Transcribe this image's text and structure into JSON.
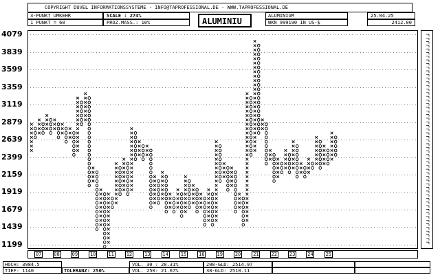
{
  "header": {
    "copyright": "COPYRIGHT DUVEL INFORMATIONSSYSTEME - INFO@TAPROFESSIONAL.DE - WWW.TAPROFESSIONAL.DE",
    "reversal": "3-PUNKT UMKEHR",
    "box_unit": "1 PUNKT = 60",
    "scale": "SCALE : 274%",
    "proz_mass": "PROZ.MASS.: 10%",
    "title": "ALUMINIU",
    "instrument": "ALUMINIUM",
    "wkn": "WKN 999190   IN US-$",
    "date": "25.04.25",
    "last_price": "2412.00"
  },
  "footer": {
    "hoch": "HOCH: 3984.5",
    "tief": "TIEF: 1140",
    "toleranz": "TOLERANZ: 250%",
    "vol30": "VOL. 30 : 20.31%",
    "vol250": "VOL. 250: 21.67%",
    "gld200": "200-GLD: 2514.97",
    "gld38": "38-GLD: 2510.11"
  },
  "colors": {
    "ink": "#000000",
    "background": "#ffffff"
  },
  "chart_data": {
    "type": "point-and-figure",
    "title": "ALUMINIU",
    "box_size": 60,
    "reversal": 3,
    "ylim": [
      1140,
      4140
    ],
    "y_ticks": [
      1199,
      1439,
      1679,
      1919,
      2159,
      2399,
      2639,
      2879,
      3119,
      3359,
      3599,
      3839,
      4079
    ],
    "x_year_labels": [
      "07",
      "08",
      "09",
      "10",
      "11",
      "12",
      "13",
      "14",
      "15",
      "16",
      "19",
      "20",
      "21",
      "22",
      "23",
      "24",
      "25"
    ],
    "columns": [
      {
        "t": "X",
        "lo": 2460,
        "hi": 2820
      },
      {
        "t": "O",
        "lo": 2640,
        "hi": 2760
      },
      {
        "t": "X",
        "lo": 2700,
        "hi": 2880
      },
      {
        "t": "O",
        "lo": 2700,
        "hi": 2820
      },
      {
        "t": "X",
        "lo": 2760,
        "hi": 2940
      },
      {
        "t": "O",
        "lo": 2700,
        "hi": 2880
      },
      {
        "t": "X",
        "lo": 2760,
        "hi": 2880
      },
      {
        "t": "O",
        "lo": 2640,
        "hi": 2820
      },
      {
        "t": "X",
        "lo": 2700,
        "hi": 2820
      },
      {
        "t": "O",
        "lo": 2580,
        "hi": 2760
      },
      {
        "t": "X",
        "lo": 2640,
        "hi": 2760
      },
      {
        "t": "O",
        "lo": 2400,
        "hi": 2700
      },
      {
        "t": "X",
        "lo": 2460,
        "hi": 3180
      },
      {
        "t": "O",
        "lo": 2820,
        "hi": 3120
      },
      {
        "t": "X",
        "lo": 2880,
        "hi": 3240
      },
      {
        "t": "O",
        "lo": 1980,
        "hi": 3180
      },
      {
        "t": "X",
        "lo": 2040,
        "hi": 2220
      },
      {
        "t": "O",
        "lo": 1380,
        "hi": 2160
      },
      {
        "t": "X",
        "lo": 1440,
        "hi": 1920
      },
      {
        "t": "O",
        "lo": 1140,
        "hi": 1860
      },
      {
        "t": "X",
        "lo": 1200,
        "hi": 1860
      },
      {
        "t": "O",
        "lo": 1680,
        "hi": 1800
      },
      {
        "t": "X",
        "lo": 1740,
        "hi": 2280
      },
      {
        "t": "O",
        "lo": 1860,
        "hi": 2220
      },
      {
        "t": "X",
        "lo": 1920,
        "hi": 2340
      },
      {
        "t": "O",
        "lo": 1860,
        "hi": 2280
      },
      {
        "t": "X",
        "lo": 1920,
        "hi": 2760
      },
      {
        "t": "O",
        "lo": 2340,
        "hi": 2700
      },
      {
        "t": "X",
        "lo": 2400,
        "hi": 2580
      },
      {
        "t": "O",
        "lo": 2340,
        "hi": 2520
      },
      {
        "t": "X",
        "lo": 2400,
        "hi": 2520
      },
      {
        "t": "O",
        "lo": 1680,
        "hi": 2460
      },
      {
        "t": "X",
        "lo": 1740,
        "hi": 2100
      },
      {
        "t": "O",
        "lo": 1740,
        "hi": 2040
      },
      {
        "t": "X",
        "lo": 1800,
        "hi": 2160
      },
      {
        "t": "O",
        "lo": 1620,
        "hi": 2100
      },
      {
        "t": "X",
        "lo": 1680,
        "hi": 1860
      },
      {
        "t": "O",
        "lo": 1620,
        "hi": 1800
      },
      {
        "t": "X",
        "lo": 1680,
        "hi": 1920
      },
      {
        "t": "O",
        "lo": 1560,
        "hi": 1860
      },
      {
        "t": "X",
        "lo": 1620,
        "hi": 2100
      },
      {
        "t": "O",
        "lo": 1680,
        "hi": 2040
      },
      {
        "t": "X",
        "lo": 1740,
        "hi": 1980
      },
      {
        "t": "O",
        "lo": 1620,
        "hi": 1920
      },
      {
        "t": "X",
        "lo": 1680,
        "hi": 1860
      },
      {
        "t": "O",
        "lo": 1440,
        "hi": 1800
      },
      {
        "t": "X",
        "lo": 1500,
        "hi": 1920
      },
      {
        "t": "O",
        "lo": 1440,
        "hi": 1860
      },
      {
        "t": "X",
        "lo": 1500,
        "hi": 2580
      },
      {
        "t": "O",
        "lo": 2040,
        "hi": 2520
      },
      {
        "t": "X",
        "lo": 2100,
        "hi": 2280
      },
      {
        "t": "O",
        "lo": 1920,
        "hi": 2220
      },
      {
        "t": "X",
        "lo": 1980,
        "hi": 2220
      },
      {
        "t": "O",
        "lo": 1620,
        "hi": 2160
      },
      {
        "t": "X",
        "lo": 1680,
        "hi": 1860
      },
      {
        "t": "O",
        "lo": 1440,
        "hi": 1800
      },
      {
        "t": "X",
        "lo": 1500,
        "hi": 3240
      },
      {
        "t": "O",
        "lo": 2400,
        "hi": 3180
      },
      {
        "t": "X",
        "lo": 2460,
        "hi": 3960
      },
      {
        "t": "O",
        "lo": 2700,
        "hi": 3900
      },
      {
        "t": "X",
        "lo": 2760,
        "hi": 2880
      },
      {
        "t": "O",
        "lo": 2280,
        "hi": 2820
      },
      {
        "t": "X",
        "lo": 2340,
        "hi": 2460
      },
      {
        "t": "O",
        "lo": 2040,
        "hi": 2400
      },
      {
        "t": "X",
        "lo": 2100,
        "hi": 2340
      },
      {
        "t": "O",
        "lo": 2160,
        "hi": 2280
      },
      {
        "t": "X",
        "lo": 2220,
        "hi": 2460
      },
      {
        "t": "O",
        "lo": 2160,
        "hi": 2400
      },
      {
        "t": "X",
        "lo": 2220,
        "hi": 2580
      },
      {
        "t": "O",
        "lo": 2100,
        "hi": 2520
      },
      {
        "t": "X",
        "lo": 2160,
        "hi": 2280
      },
      {
        "t": "O",
        "lo": 2100,
        "hi": 2220
      },
      {
        "t": "X",
        "lo": 2160,
        "hi": 2340
      },
      {
        "t": "O",
        "lo": 2220,
        "hi": 2280
      },
      {
        "t": "X",
        "lo": 2280,
        "hi": 2640
      },
      {
        "t": "O",
        "lo": 2220,
        "hi": 2580
      },
      {
        "t": "X",
        "lo": 2280,
        "hi": 2520
      },
      {
        "t": "O",
        "lo": 2280,
        "hi": 2460
      },
      {
        "t": "X",
        "lo": 2340,
        "hi": 2700
      },
      {
        "t": "O",
        "lo": 2400,
        "hi": 2640
      }
    ]
  }
}
